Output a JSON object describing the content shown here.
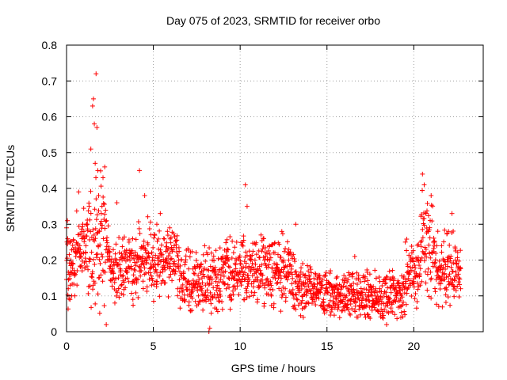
{
  "chart_data": {
    "type": "scatter",
    "title": "Day 075 of 2023, SRMTID for receiver orbo",
    "xlabel": "GPS time / hours",
    "ylabel": "SRMTID / TECUs",
    "xlim": [
      0,
      24
    ],
    "ylim": [
      0,
      0.8
    ],
    "x_ticks": [
      0,
      5,
      10,
      15,
      20
    ],
    "x_tick_labels": [
      "0",
      "5",
      "10",
      "15",
      "20"
    ],
    "y_ticks": [
      0,
      0.1,
      0.2,
      0.3,
      0.4,
      0.5,
      0.6,
      0.7,
      0.8
    ],
    "y_tick_labels": [
      "0",
      "0.1",
      "0.2",
      "0.3",
      "0.4",
      "0.5",
      "0.6",
      "0.7",
      "0.8"
    ],
    "grid": true,
    "marker": "+",
    "color": "#ff0000",
    "series": [
      {
        "name": "SRMTID",
        "x": [
          0.0,
          0.05,
          0.1,
          0.15,
          0.2,
          0.25,
          0.3,
          0.4,
          0.5,
          0.6,
          0.7,
          0.8,
          0.9,
          1.0,
          1.1,
          1.2,
          1.3,
          1.4,
          1.5,
          1.55,
          1.6,
          1.65,
          1.7,
          1.75,
          1.8,
          1.85,
          1.9,
          2.0,
          2.1,
          2.2,
          2.3,
          2.5,
          2.7,
          2.9,
          3.0,
          3.2,
          3.4,
          3.6,
          3.8,
          4.0,
          4.2,
          4.3,
          4.5,
          4.7,
          4.9,
          5.0,
          5.2,
          5.4,
          5.6,
          5.8,
          6.0,
          6.2,
          6.4,
          6.6,
          6.8,
          7.0,
          7.2,
          7.4,
          7.6,
          7.8,
          8.0,
          8.2,
          8.25,
          8.4,
          8.6,
          8.8,
          9.0,
          9.2,
          9.4,
          9.6,
          9.8,
          10.0,
          10.2,
          10.3,
          10.4,
          10.6,
          10.8,
          11.0,
          11.2,
          11.4,
          11.6,
          11.8,
          12.0,
          12.2,
          12.4,
          12.6,
          12.8,
          13.0,
          13.2,
          13.4,
          13.6,
          13.8,
          14.0,
          14.2,
          14.4,
          14.6,
          14.8,
          15.0,
          15.2,
          15.4,
          15.6,
          15.8,
          16.0,
          16.2,
          16.4,
          16.6,
          16.8,
          17.0,
          17.2,
          17.4,
          17.6,
          17.8,
          18.0,
          18.2,
          18.4,
          18.6,
          18.8,
          19.0,
          19.2,
          19.4,
          19.6,
          19.8,
          20.0,
          20.2,
          20.4,
          20.5,
          20.6,
          20.7,
          20.8,
          20.9,
          21.0,
          21.2,
          21.4,
          21.6,
          21.8,
          22.0,
          22.2,
          22.4,
          22.6,
          22.7
        ],
        "y": [
          0.29,
          0.31,
          0.12,
          0.16,
          0.09,
          0.2,
          0.1,
          0.23,
          0.16,
          0.13,
          0.39,
          0.21,
          0.17,
          0.28,
          0.22,
          0.3,
          0.35,
          0.51,
          0.63,
          0.65,
          0.58,
          0.47,
          0.72,
          0.57,
          0.45,
          0.38,
          0.28,
          0.33,
          0.43,
          0.46,
          0.31,
          0.2,
          0.15,
          0.36,
          0.12,
          0.2,
          0.17,
          0.25,
          0.14,
          0.21,
          0.45,
          0.17,
          0.38,
          0.22,
          0.13,
          0.18,
          0.3,
          0.33,
          0.26,
          0.19,
          0.16,
          0.24,
          0.12,
          0.2,
          0.09,
          0.14,
          0.11,
          0.18,
          0.1,
          0.15,
          0.13,
          0.0,
          0.01,
          0.2,
          0.14,
          0.17,
          0.21,
          0.12,
          0.18,
          0.15,
          0.25,
          0.19,
          0.16,
          0.41,
          0.35,
          0.21,
          0.14,
          0.09,
          0.27,
          0.13,
          0.18,
          0.1,
          0.22,
          0.15,
          0.28,
          0.12,
          0.2,
          0.16,
          0.3,
          0.11,
          0.19,
          0.08,
          0.14,
          0.12,
          0.1,
          0.15,
          0.09,
          0.11,
          0.17,
          0.08,
          0.13,
          0.1,
          0.07,
          0.12,
          0.09,
          0.21,
          0.11,
          0.08,
          0.15,
          0.1,
          0.06,
          0.12,
          0.09,
          0.04,
          0.11,
          0.08,
          0.13,
          0.1,
          0.07,
          0.15,
          0.12,
          0.18,
          0.14,
          0.2,
          0.25,
          0.44,
          0.41,
          0.33,
          0.28,
          0.22,
          0.38,
          0.19,
          0.15,
          0.24,
          0.12,
          0.28,
          0.33,
          0.2,
          0.15,
          0.12
        ],
        "extra": {
          "note": "dense red plus-marker scatter; extra points sampled around a noisy baseline"
        }
      }
    ]
  }
}
